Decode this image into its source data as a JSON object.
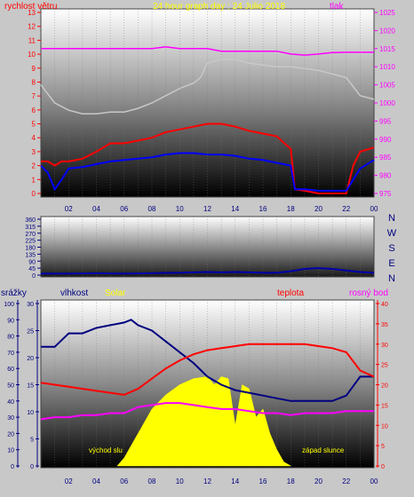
{
  "colors": {
    "wind": "#ff0000",
    "wind_avg": "#0000ff",
    "pressure": "#ff00ff",
    "gray_line": "#c8c8c8",
    "humidity": "#000080",
    "solar": "#ffff00",
    "temperature": "#ff0000",
    "dewpoint": "#ff00ff",
    "direction": "#0000aa"
  },
  "top": {
    "title": "24 hour graph day : 24 Julio 2018",
    "left_label": "rychlost větru",
    "right_label": "tlak",
    "left_ticks": [
      "0",
      "1",
      "2",
      "3",
      "4",
      "5",
      "6",
      "7",
      "8",
      "9",
      "10",
      "11",
      "12",
      "13"
    ],
    "right_ticks": [
      "975",
      "980",
      "985",
      "990",
      "995",
      "1000",
      "1005",
      "1010",
      "1015",
      "1020",
      "1025"
    ]
  },
  "middle": {
    "left_ticks": [
      "0",
      "45",
      "90",
      "135",
      "180",
      "225",
      "270",
      "315",
      "360"
    ],
    "dir_letters": [
      "N",
      "W",
      "S",
      "E",
      "N"
    ]
  },
  "bottom": {
    "label_rain": "srážky",
    "label_humidity": "vlhkost",
    "label_solar": "Solar",
    "label_temperature": "teplota",
    "label_dewpoint": "rosný bod",
    "ticks_rain": [
      "0",
      "10",
      "20",
      "30",
      "40",
      "50",
      "60",
      "70",
      "80",
      "90",
      "100"
    ],
    "ticks_humidity": [
      "0",
      "5",
      "10",
      "15",
      "20",
      "25",
      "30"
    ],
    "ticks_temp": [
      "0",
      "5",
      "10",
      "15",
      "20",
      "25",
      "30",
      "35",
      "40"
    ],
    "sunrise": "východ slu",
    "sunset": "západ slunce"
  },
  "x_ticks": [
    "02",
    "04",
    "06",
    "08",
    "10",
    "12",
    "14",
    "16",
    "18",
    "20",
    "22",
    "00"
  ],
  "chart_data": [
    {
      "type": "line",
      "x_unit": "hour",
      "xlim": [
        0,
        24
      ],
      "left_ylim": [
        0,
        13
      ],
      "right_ylim": [
        975,
        1025
      ],
      "series": [
        {
          "axis": "left",
          "x": [
            0,
            0.5,
            1,
            1.5,
            2,
            3,
            4,
            5,
            6,
            7,
            8,
            9,
            10,
            11,
            12,
            13,
            14,
            15,
            16,
            17,
            18,
            18.3,
            19,
            20,
            21,
            22,
            22.5,
            23,
            24
          ],
          "values": [
            2.3,
            2.3,
            2,
            2.3,
            2.3,
            2.5,
            3,
            3.6,
            3.6,
            3.8,
            4,
            4.4,
            4.6,
            4.8,
            5,
            5,
            4.8,
            4.5,
            4.3,
            4.1,
            3.2,
            0.3,
            0.2,
            0,
            0,
            0,
            2,
            3,
            3.3
          ]
        },
        {
          "axis": "left",
          "x": [
            0,
            0.5,
            1,
            1.5,
            2,
            3,
            4,
            5,
            6,
            7,
            8,
            9,
            10,
            11,
            12,
            13,
            14,
            15,
            16,
            17,
            18,
            18.3,
            19,
            20,
            21,
            22,
            22.5,
            23,
            24
          ],
          "values": [
            2,
            1.5,
            0.3,
            1,
            1.8,
            1.9,
            2.1,
            2.3,
            2.4,
            2.5,
            2.6,
            2.8,
            2.9,
            2.9,
            2.8,
            2.8,
            2.7,
            2.5,
            2.4,
            2.2,
            2,
            0.3,
            0.3,
            0.2,
            0.2,
            0.2,
            1,
            1.8,
            2.4
          ]
        },
        {
          "name": "tlak",
          "axis": "right",
          "x": [
            0,
            2,
            4,
            6,
            8,
            9,
            10,
            11,
            12,
            13,
            14,
            15,
            16,
            17,
            18,
            19,
            20,
            21,
            22,
            23,
            24
          ],
          "values": [
            1015,
            1015,
            1015,
            1015,
            1015,
            1015.5,
            1015,
            1015,
            1015,
            1014.3,
            1014.3,
            1014.3,
            1014.3,
            1014.3,
            1013.5,
            1013.2,
            1013.5,
            1013.9,
            1014,
            1014,
            1014
          ]
        },
        {
          "axis": "right",
          "x": [
            0,
            1,
            2,
            3,
            4,
            5,
            6,
            7,
            8,
            9,
            10,
            11,
            11.5,
            12,
            13,
            14,
            15,
            16,
            17,
            18,
            19,
            20,
            21,
            22,
            23,
            24
          ],
          "values": [
            1005,
            1000,
            998,
            997,
            997,
            997.5,
            997.5,
            998.5,
            1000,
            1002,
            1004,
            1005.5,
            1007,
            1011,
            1012,
            1012,
            1011,
            1010.5,
            1010,
            1010,
            1009.5,
            1009,
            1008,
            1007,
            1002,
            1001
          ]
        }
      ]
    },
    {
      "type": "line",
      "x_unit": "hour",
      "xlim": [
        0,
        24
      ],
      "ylim": [
        0,
        360
      ],
      "series": [
        {
          "x": [
            0,
            2,
            4,
            6,
            8,
            9,
            10,
            11,
            12,
            13,
            14,
            15,
            16,
            17,
            18,
            19,
            20,
            21,
            22,
            23,
            24
          ],
          "values": [
            10,
            10,
            12,
            10,
            12,
            15,
            15,
            18,
            20,
            18,
            20,
            18,
            15,
            15,
            25,
            40,
            45,
            40,
            30,
            20,
            15
          ]
        }
      ]
    },
    {
      "type": "line",
      "x_unit": "hour",
      "xlim": [
        0,
        24
      ],
      "series": [
        {
          "name": "vlhkost",
          "axis": "humidity",
          "ylim": [
            0,
            30
          ],
          "x": [
            0,
            1,
            2,
            3,
            4,
            5,
            6,
            6.5,
            7,
            8,
            9,
            10,
            11,
            12,
            13,
            14,
            15,
            16,
            17,
            18,
            19,
            20,
            21,
            22,
            23,
            24
          ],
          "values": [
            22,
            22,
            24.5,
            24.5,
            25.5,
            26,
            26.5,
            27,
            26,
            25,
            23,
            21,
            19,
            16.5,
            15,
            14,
            13.5,
            13,
            12.5,
            12,
            12,
            12,
            12,
            13,
            16.5,
            16.5
          ]
        },
        {
          "name": "teplota",
          "axis": "temp",
          "ylim": [
            0,
            40
          ],
          "x": [
            0,
            1,
            2,
            3,
            4,
            5,
            6,
            7,
            8,
            9,
            10,
            11,
            12,
            13,
            14,
            15,
            16,
            17,
            18,
            19,
            20,
            21,
            22,
            23,
            24
          ],
          "values": [
            20.5,
            20,
            19.5,
            19,
            18.5,
            18,
            17.5,
            19,
            21.5,
            24,
            26,
            27.5,
            28.5,
            29,
            29.5,
            30,
            30,
            30,
            30,
            30,
            29.5,
            29,
            28,
            23.5,
            22
          ]
        },
        {
          "name": "rosný bod",
          "axis": "temp",
          "ylim": [
            0,
            40
          ],
          "x": [
            0,
            1,
            2,
            3,
            4,
            5,
            6,
            7,
            8,
            9,
            10,
            11,
            12,
            13,
            14,
            15,
            16,
            17,
            18,
            19,
            20,
            21,
            22,
            23,
            24
          ],
          "values": [
            11.5,
            12,
            12,
            12.5,
            12.5,
            13,
            13,
            14.5,
            15,
            15.5,
            15.5,
            15,
            14.5,
            14,
            14,
            13.5,
            13,
            13,
            12.5,
            13,
            13,
            13,
            13.5,
            13.5,
            13.5
          ]
        },
        {
          "name": "Solar",
          "type": "area",
          "axis": "temp",
          "ylim": [
            0,
            40
          ],
          "x": [
            5.5,
            6,
            6.5,
            7,
            8,
            9,
            10,
            11,
            12,
            12.5,
            13,
            13.5,
            14,
            14.5,
            15,
            15.5,
            16,
            16.5,
            17,
            17.5,
            18
          ],
          "values": [
            0,
            2,
            5,
            8,
            14,
            17.5,
            20,
            21.5,
            22,
            20,
            22,
            21.5,
            10,
            20,
            19,
            12,
            14,
            8,
            4,
            1,
            0
          ]
        },
        {
          "name": "srážky",
          "axis": "rain",
          "ylim": [
            0,
            100
          ],
          "x": [
            0,
            24
          ],
          "values": [
            0,
            0
          ]
        }
      ]
    }
  ]
}
